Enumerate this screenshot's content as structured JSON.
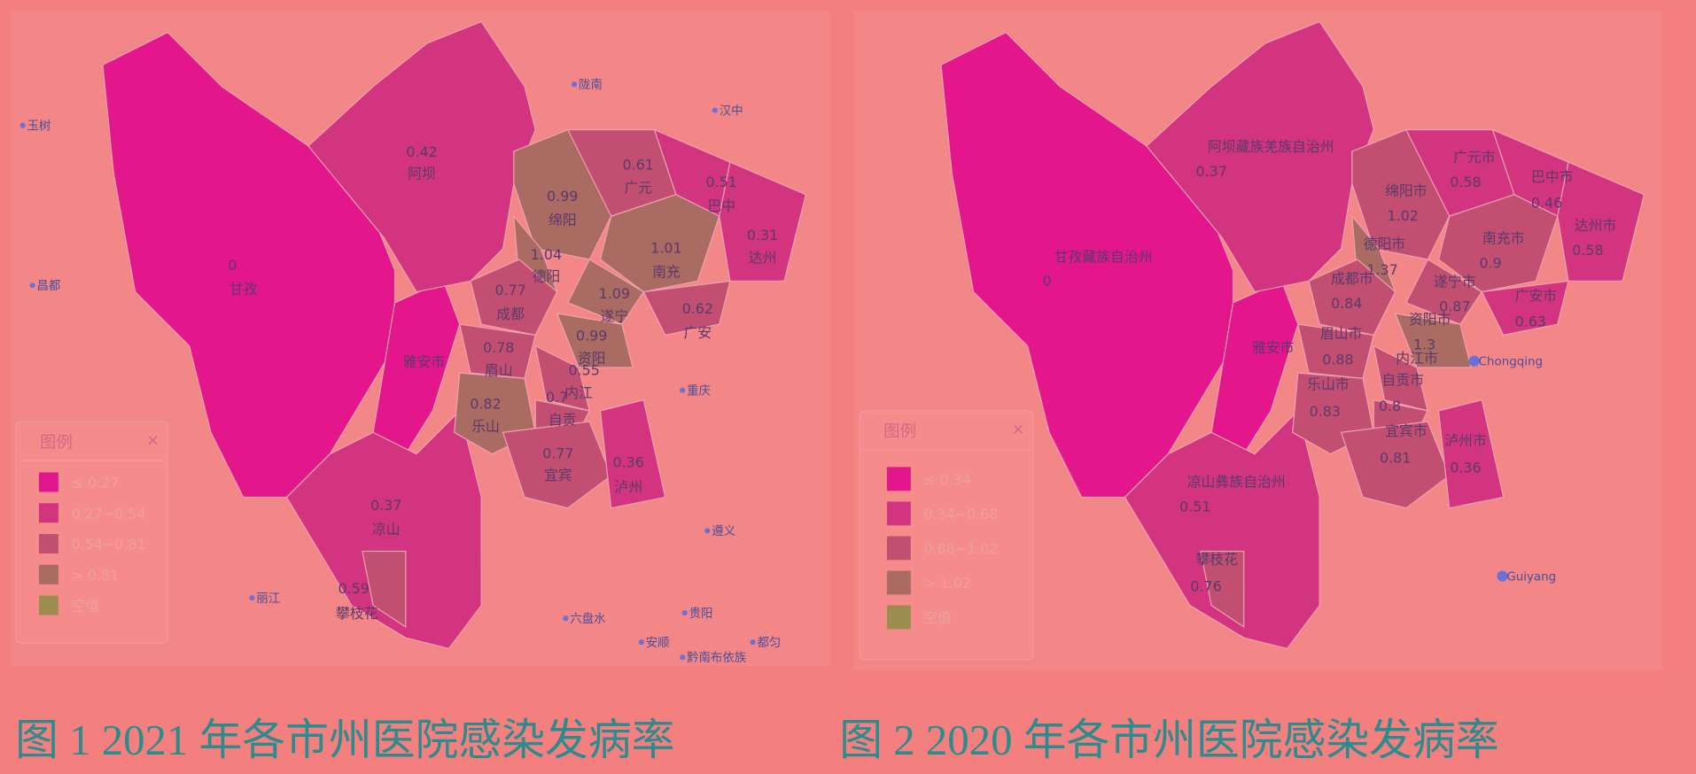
{
  "maps": [
    {
      "caption": "图 1 2021 年各市州医院感染发病率",
      "legend": {
        "title": "图例",
        "close": "×",
        "items": [
          {
            "label": "≤ 0.27",
            "color": "#e3168c"
          },
          {
            "label": "0.27~0.54",
            "color": "#d3347f"
          },
          {
            "label": "0.54~0.81",
            "color": "#c24f72"
          },
          {
            "label": "> 0.81",
            "color": "#aa6b63"
          },
          {
            "label": "空值",
            "color": "#9c8c4e"
          }
        ]
      },
      "regions": [
        {
          "name": "阿坝",
          "value": "0.42"
        },
        {
          "name": "甘孜",
          "value": "0"
        },
        {
          "name": "广元",
          "value": "0.61"
        },
        {
          "name": "巴中",
          "value": "0.51"
        },
        {
          "name": "绵阳",
          "value": "0.99"
        },
        {
          "name": "达州",
          "value": "0.31"
        },
        {
          "name": "德阳",
          "value": "1.04"
        },
        {
          "name": "南充",
          "value": "1.01"
        },
        {
          "name": "遂宁",
          "value": "1.09"
        },
        {
          "name": "成都",
          "value": "0.77"
        },
        {
          "name": "广安",
          "value": "0.62"
        },
        {
          "name": "资阳",
          "value": "0.99"
        },
        {
          "name": "眉山",
          "value": "0.78"
        },
        {
          "name": "内江",
          "value": "0.55"
        },
        {
          "name": "自贡",
          "value": "0.7"
        },
        {
          "name": "乐山",
          "value": "0.82"
        },
        {
          "name": "宜宾",
          "value": "0.77"
        },
        {
          "name": "泸州",
          "value": "0.36"
        },
        {
          "name": "凉山",
          "value": "0.37"
        },
        {
          "name": "攀枝花",
          "value": "0.59"
        },
        {
          "name": "雅安市"
        }
      ],
      "places": [
        "玉树",
        "陇南",
        "汉中",
        "昌都",
        "重庆",
        "遵义",
        "丽江",
        "六盘水",
        "贵阳",
        "安顺",
        "黔南布依族",
        "都匀"
      ]
    },
    {
      "caption": "图 2 2020 年各市州医院感染发病率",
      "legend": {
        "title": "图例",
        "close": "×",
        "items": [
          {
            "label": "≤ 0.34",
            "color": "#e3168c"
          },
          {
            "label": "0.34~0.68",
            "color": "#d3347f"
          },
          {
            "label": "0.68~1.02",
            "color": "#c24f72"
          },
          {
            "label": "> 1.02",
            "color": "#aa6b63"
          },
          {
            "label": "空值",
            "color": "#9c8c4e"
          }
        ]
      },
      "regions": [
        {
          "name": "阿坝藏族羌族自治州",
          "value": "0.37"
        },
        {
          "name": "广元市",
          "value": "0.58"
        },
        {
          "name": "巴中市",
          "value": "0.46"
        },
        {
          "name": "绵阳市",
          "value": "1.02"
        },
        {
          "name": "南充市",
          "value": "0.9"
        },
        {
          "name": "达州市",
          "value": "0.58"
        },
        {
          "name": "甘孜藏族自治州",
          "value": "0"
        },
        {
          "name": "德阳市",
          "value": "1.37"
        },
        {
          "name": "成都市",
          "value": "0.84"
        },
        {
          "name": "遂宁市",
          "value": "0.87"
        },
        {
          "name": "广安市",
          "value": "0.63"
        },
        {
          "name": "资阳市",
          "value": "1.3"
        },
        {
          "name": "雅安市"
        },
        {
          "name": "眉山市",
          "value": "0.88"
        },
        {
          "name": "内江市"
        },
        {
          "name": "乐山市",
          "value": "0.83"
        },
        {
          "name": "自贡市",
          "value": "0.8"
        },
        {
          "name": "宜宾市",
          "value": "0.81"
        },
        {
          "name": "泸州市",
          "value": "0.36"
        },
        {
          "name": "凉山彝族自治州",
          "value": "0.51"
        },
        {
          "name": "攀枝花",
          "value": "0.76"
        }
      ],
      "places": [
        "Chongqing",
        "Guiyang"
      ]
    }
  ]
}
